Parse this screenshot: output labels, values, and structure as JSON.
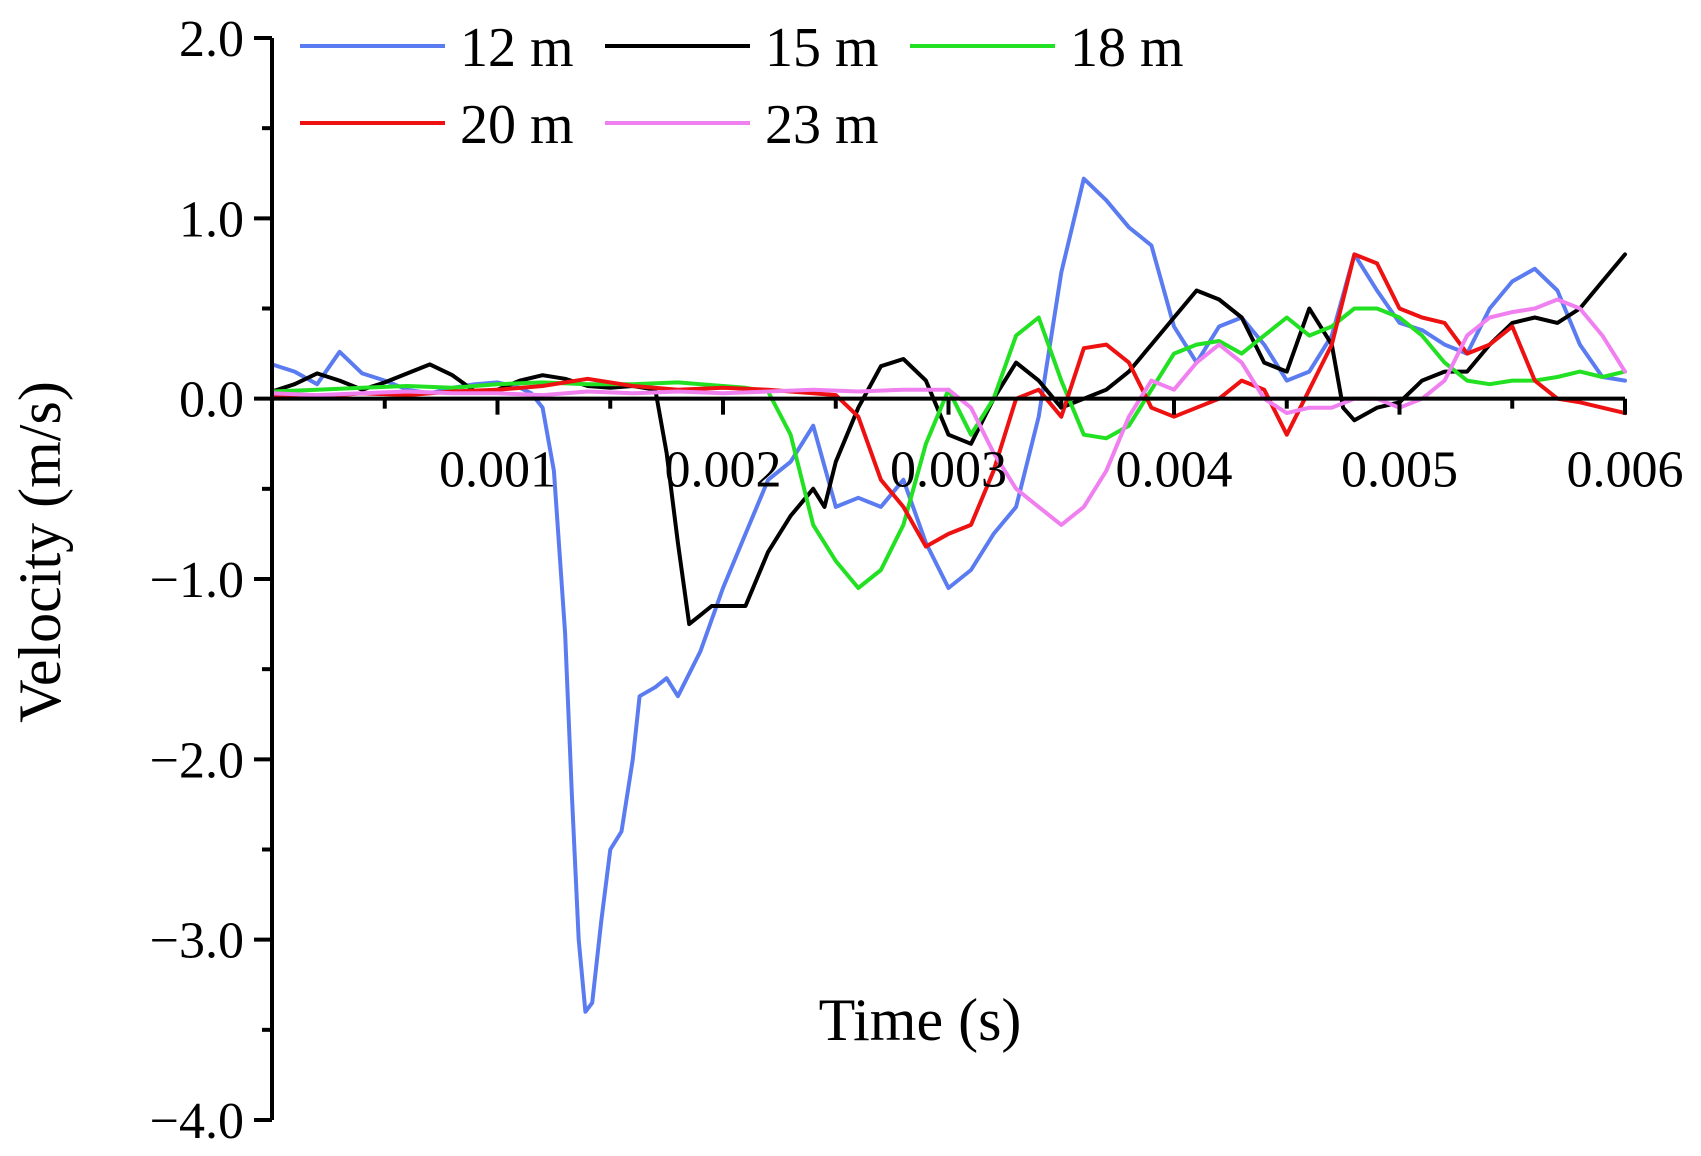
{
  "chart_data": {
    "type": "line",
    "title": "",
    "xlabel": "Time (s)",
    "ylabel": "Velocity (m/s)",
    "xlim": [
      0,
      0.006
    ],
    "ylim": [
      -4.0,
      2.0
    ],
    "xticks": [
      0.001,
      0.002,
      0.003,
      0.004,
      0.005,
      0.006
    ],
    "xtick_labels": [
      "0.001",
      "0.002",
      "0.003",
      "0.004",
      "0.005",
      "0.006"
    ],
    "yticks": [
      2.0,
      1.0,
      0.0,
      -1.0,
      -2.0,
      -3.0,
      -4.0
    ],
    "ytick_labels": [
      "2.0",
      "1.0",
      "0.0",
      "−1.0",
      "−2.0",
      "−3.0",
      "−4.0"
    ],
    "grid": false,
    "legend_position": "top",
    "series": [
      {
        "name": "12 m",
        "color": "#5b7cf0",
        "points": [
          [
            0,
            0.19
          ],
          [
            0.0001,
            0.15
          ],
          [
            0.0002,
            0.08
          ],
          [
            0.0003,
            0.26
          ],
          [
            0.0004,
            0.14
          ],
          [
            0.0005,
            0.1
          ],
          [
            0.0006,
            0.05
          ],
          [
            0.0007,
            0.03
          ],
          [
            0.0008,
            0.06
          ],
          [
            0.0009,
            0.08
          ],
          [
            0.001,
            0.09
          ],
          [
            0.0011,
            0.06
          ],
          [
            0.00115,
            0.03
          ],
          [
            0.0012,
            -0.05
          ],
          [
            0.00125,
            -0.4
          ],
          [
            0.0013,
            -1.3
          ],
          [
            0.00133,
            -2.2
          ],
          [
            0.00136,
            -3.0
          ],
          [
            0.00139,
            -3.4
          ],
          [
            0.00142,
            -3.35
          ],
          [
            0.00146,
            -2.9
          ],
          [
            0.0015,
            -2.5
          ],
          [
            0.00155,
            -2.4
          ],
          [
            0.0016,
            -2.0
          ],
          [
            0.00163,
            -1.65
          ],
          [
            0.0017,
            -1.6
          ],
          [
            0.00175,
            -1.55
          ],
          [
            0.0018,
            -1.65
          ],
          [
            0.0019,
            -1.4
          ],
          [
            0.002,
            -1.05
          ],
          [
            0.0021,
            -0.75
          ],
          [
            0.0022,
            -0.45
          ],
          [
            0.0023,
            -0.35
          ],
          [
            0.0024,
            -0.15
          ],
          [
            0.0025,
            -0.6
          ],
          [
            0.0026,
            -0.55
          ],
          [
            0.0027,
            -0.6
          ],
          [
            0.0028,
            -0.45
          ],
          [
            0.0029,
            -0.8
          ],
          [
            0.003,
            -1.05
          ],
          [
            0.0031,
            -0.95
          ],
          [
            0.0032,
            -0.75
          ],
          [
            0.0033,
            -0.6
          ],
          [
            0.0034,
            -0.1
          ],
          [
            0.0035,
            0.7
          ],
          [
            0.0036,
            1.22
          ],
          [
            0.0037,
            1.1
          ],
          [
            0.0038,
            0.95
          ],
          [
            0.0039,
            0.85
          ],
          [
            0.004,
            0.4
          ],
          [
            0.0041,
            0.2
          ],
          [
            0.0042,
            0.4
          ],
          [
            0.0043,
            0.45
          ],
          [
            0.0044,
            0.3
          ],
          [
            0.0045,
            0.1
          ],
          [
            0.0046,
            0.15
          ],
          [
            0.0047,
            0.35
          ],
          [
            0.0048,
            0.8
          ],
          [
            0.0049,
            0.6
          ],
          [
            0.005,
            0.42
          ],
          [
            0.0051,
            0.38
          ],
          [
            0.0052,
            0.3
          ],
          [
            0.0053,
            0.25
          ],
          [
            0.0054,
            0.5
          ],
          [
            0.0055,
            0.65
          ],
          [
            0.0056,
            0.72
          ],
          [
            0.0057,
            0.6
          ],
          [
            0.0058,
            0.3
          ],
          [
            0.0059,
            0.12
          ],
          [
            0.006,
            0.1
          ]
        ]
      },
      {
        "name": "15 m",
        "color": "#000000",
        "points": [
          [
            0,
            0.04
          ],
          [
            0.0001,
            0.08
          ],
          [
            0.0002,
            0.14
          ],
          [
            0.0003,
            0.1
          ],
          [
            0.0004,
            0.05
          ],
          [
            0.0005,
            0.09
          ],
          [
            0.0006,
            0.14
          ],
          [
            0.0007,
            0.19
          ],
          [
            0.0008,
            0.13
          ],
          [
            0.0009,
            0.04
          ],
          [
            0.001,
            0.05
          ],
          [
            0.0011,
            0.1
          ],
          [
            0.0012,
            0.13
          ],
          [
            0.0013,
            0.11
          ],
          [
            0.0014,
            0.07
          ],
          [
            0.0015,
            0.06
          ],
          [
            0.0016,
            0.07
          ],
          [
            0.0017,
            0.05
          ],
          [
            0.00175,
            -0.3
          ],
          [
            0.0018,
            -0.8
          ],
          [
            0.00185,
            -1.25
          ],
          [
            0.0019,
            -1.2
          ],
          [
            0.00195,
            -1.15
          ],
          [
            0.002,
            -1.15
          ],
          [
            0.0021,
            -1.15
          ],
          [
            0.0022,
            -0.85
          ],
          [
            0.0023,
            -0.65
          ],
          [
            0.0024,
            -0.5
          ],
          [
            0.00245,
            -0.6
          ],
          [
            0.0025,
            -0.35
          ],
          [
            0.0026,
            -0.05
          ],
          [
            0.0027,
            0.18
          ],
          [
            0.0028,
            0.22
          ],
          [
            0.0029,
            0.1
          ],
          [
            0.003,
            -0.2
          ],
          [
            0.0031,
            -0.25
          ],
          [
            0.0032,
            0.0
          ],
          [
            0.0033,
            0.2
          ],
          [
            0.0034,
            0.1
          ],
          [
            0.0035,
            -0.05
          ],
          [
            0.0036,
            0.0
          ],
          [
            0.0037,
            0.05
          ],
          [
            0.0038,
            0.15
          ],
          [
            0.0039,
            0.3
          ],
          [
            0.004,
            0.45
          ],
          [
            0.0041,
            0.6
          ],
          [
            0.0042,
            0.55
          ],
          [
            0.0043,
            0.45
          ],
          [
            0.0044,
            0.2
          ],
          [
            0.0045,
            0.15
          ],
          [
            0.0046,
            0.5
          ],
          [
            0.0047,
            0.3
          ],
          [
            0.00475,
            -0.05
          ],
          [
            0.0048,
            -0.12
          ],
          [
            0.0049,
            -0.05
          ],
          [
            0.005,
            -0.02
          ],
          [
            0.0051,
            0.1
          ],
          [
            0.0052,
            0.15
          ],
          [
            0.0053,
            0.15
          ],
          [
            0.0054,
            0.3
          ],
          [
            0.0055,
            0.42
          ],
          [
            0.0056,
            0.45
          ],
          [
            0.0057,
            0.42
          ],
          [
            0.0058,
            0.5
          ],
          [
            0.0059,
            0.65
          ],
          [
            0.006,
            0.8
          ]
        ]
      },
      {
        "name": "18 m",
        "color": "#22e022",
        "points": [
          [
            0,
            0.04
          ],
          [
            0.0002,
            0.05
          ],
          [
            0.0004,
            0.06
          ],
          [
            0.0006,
            0.07
          ],
          [
            0.0008,
            0.06
          ],
          [
            0.001,
            0.08
          ],
          [
            0.0012,
            0.09
          ],
          [
            0.0014,
            0.08
          ],
          [
            0.0016,
            0.08
          ],
          [
            0.0018,
            0.09
          ],
          [
            0.002,
            0.07
          ],
          [
            0.0021,
            0.06
          ],
          [
            0.0022,
            0.04
          ],
          [
            0.0023,
            -0.2
          ],
          [
            0.0024,
            -0.7
          ],
          [
            0.0025,
            -0.9
          ],
          [
            0.0026,
            -1.05
          ],
          [
            0.0027,
            -0.95
          ],
          [
            0.0028,
            -0.7
          ],
          [
            0.0029,
            -0.25
          ],
          [
            0.003,
            0.05
          ],
          [
            0.0031,
            -0.2
          ],
          [
            0.0032,
            0.0
          ],
          [
            0.0033,
            0.35
          ],
          [
            0.0034,
            0.45
          ],
          [
            0.0035,
            0.1
          ],
          [
            0.0036,
            -0.2
          ],
          [
            0.0037,
            -0.22
          ],
          [
            0.0038,
            -0.15
          ],
          [
            0.0039,
            0.05
          ],
          [
            0.004,
            0.25
          ],
          [
            0.0041,
            0.3
          ],
          [
            0.0042,
            0.32
          ],
          [
            0.0043,
            0.25
          ],
          [
            0.0044,
            0.35
          ],
          [
            0.0045,
            0.45
          ],
          [
            0.0046,
            0.35
          ],
          [
            0.0047,
            0.4
          ],
          [
            0.0048,
            0.5
          ],
          [
            0.0049,
            0.5
          ],
          [
            0.005,
            0.45
          ],
          [
            0.0051,
            0.35
          ],
          [
            0.0052,
            0.2
          ],
          [
            0.0053,
            0.1
          ],
          [
            0.0054,
            0.08
          ],
          [
            0.0055,
            0.1
          ],
          [
            0.0056,
            0.1
          ],
          [
            0.0057,
            0.12
          ],
          [
            0.0058,
            0.15
          ],
          [
            0.0059,
            0.12
          ],
          [
            0.006,
            0.15
          ]
        ]
      },
      {
        "name": "20 m",
        "color": "#ee1111",
        "points": [
          [
            0,
            0.02
          ],
          [
            0.0002,
            0.01
          ],
          [
            0.0004,
            0.03
          ],
          [
            0.0006,
            0.02
          ],
          [
            0.0008,
            0.04
          ],
          [
            0.001,
            0.05
          ],
          [
            0.0012,
            0.07
          ],
          [
            0.0014,
            0.11
          ],
          [
            0.0016,
            0.07
          ],
          [
            0.0018,
            0.05
          ],
          [
            0.002,
            0.06
          ],
          [
            0.0022,
            0.05
          ],
          [
            0.0024,
            0.03
          ],
          [
            0.0025,
            0.02
          ],
          [
            0.0026,
            -0.1
          ],
          [
            0.0027,
            -0.45
          ],
          [
            0.0028,
            -0.6
          ],
          [
            0.0029,
            -0.82
          ],
          [
            0.003,
            -0.75
          ],
          [
            0.0031,
            -0.7
          ],
          [
            0.0032,
            -0.4
          ],
          [
            0.0033,
            0.0
          ],
          [
            0.0034,
            0.05
          ],
          [
            0.0035,
            -0.1
          ],
          [
            0.0036,
            0.28
          ],
          [
            0.0037,
            0.3
          ],
          [
            0.0038,
            0.2
          ],
          [
            0.0039,
            -0.05
          ],
          [
            0.004,
            -0.1
          ],
          [
            0.0041,
            -0.05
          ],
          [
            0.0042,
            0.0
          ],
          [
            0.0043,
            0.1
          ],
          [
            0.0044,
            0.05
          ],
          [
            0.0045,
            -0.2
          ],
          [
            0.0046,
            0.05
          ],
          [
            0.0047,
            0.3
          ],
          [
            0.0048,
            0.8
          ],
          [
            0.0049,
            0.75
          ],
          [
            0.005,
            0.5
          ],
          [
            0.0051,
            0.45
          ],
          [
            0.0052,
            0.42
          ],
          [
            0.0053,
            0.25
          ],
          [
            0.0054,
            0.3
          ],
          [
            0.0055,
            0.4
          ],
          [
            0.0056,
            0.1
          ],
          [
            0.0057,
            0.0
          ],
          [
            0.0058,
            -0.02
          ],
          [
            0.0059,
            -0.05
          ],
          [
            0.006,
            -0.08
          ]
        ]
      },
      {
        "name": "23 m",
        "color": "#f080f0",
        "points": [
          [
            0,
            0.03
          ],
          [
            0.0002,
            0.02
          ],
          [
            0.0004,
            0.03
          ],
          [
            0.0006,
            0.04
          ],
          [
            0.0008,
            0.03
          ],
          [
            0.001,
            0.03
          ],
          [
            0.0012,
            0.02
          ],
          [
            0.0014,
            0.04
          ],
          [
            0.0016,
            0.03
          ],
          [
            0.0018,
            0.04
          ],
          [
            0.002,
            0.03
          ],
          [
            0.0022,
            0.04
          ],
          [
            0.0024,
            0.05
          ],
          [
            0.0026,
            0.04
          ],
          [
            0.0028,
            0.05
          ],
          [
            0.003,
            0.05
          ],
          [
            0.0031,
            -0.05
          ],
          [
            0.0032,
            -0.3
          ],
          [
            0.0033,
            -0.5
          ],
          [
            0.0034,
            -0.6
          ],
          [
            0.0035,
            -0.7
          ],
          [
            0.0036,
            -0.6
          ],
          [
            0.0037,
            -0.4
          ],
          [
            0.0038,
            -0.1
          ],
          [
            0.0039,
            0.1
          ],
          [
            0.004,
            0.05
          ],
          [
            0.0041,
            0.2
          ],
          [
            0.0042,
            0.3
          ],
          [
            0.0043,
            0.2
          ],
          [
            0.0044,
            0.0
          ],
          [
            0.0045,
            -0.08
          ],
          [
            0.0046,
            -0.05
          ],
          [
            0.0047,
            -0.05
          ],
          [
            0.0048,
            0.0
          ],
          [
            0.0049,
            0.0
          ],
          [
            0.005,
            -0.05
          ],
          [
            0.0051,
            0.0
          ],
          [
            0.0052,
            0.1
          ],
          [
            0.0053,
            0.35
          ],
          [
            0.0054,
            0.45
          ],
          [
            0.0055,
            0.48
          ],
          [
            0.0056,
            0.5
          ],
          [
            0.0057,
            0.55
          ],
          [
            0.0058,
            0.5
          ],
          [
            0.0059,
            0.35
          ],
          [
            0.006,
            0.15
          ]
        ]
      }
    ]
  }
}
